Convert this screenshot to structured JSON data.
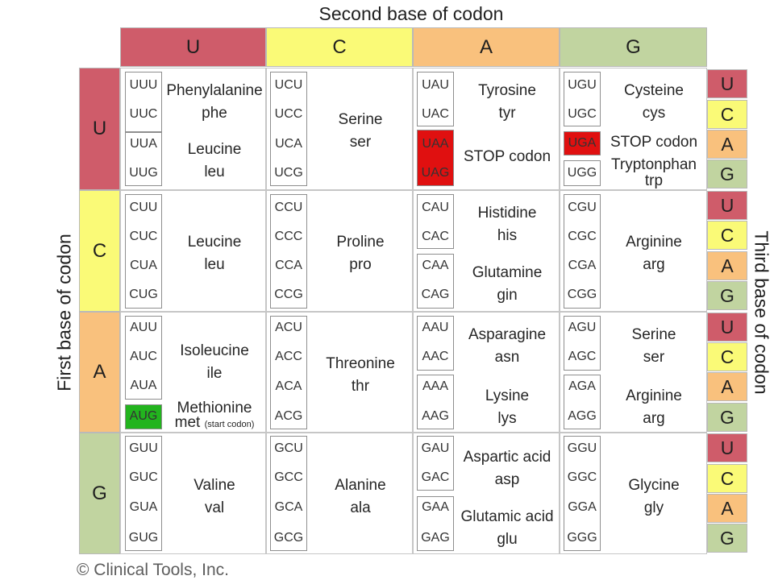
{
  "title_top": "Second base of codon",
  "title_left": "First base of codon",
  "title_right": "Third base of codon",
  "copyright": "© Clinical Tools, Inc.",
  "colors": {
    "U": "#cf5c6a",
    "C": "#fafa77",
    "A": "#f9c17d",
    "G": "#c1d4a0",
    "stop": "#e01010",
    "start": "#22b41e"
  },
  "second": [
    "U",
    "C",
    "A",
    "G"
  ],
  "first": [
    "U",
    "C",
    "A",
    "G"
  ],
  "third": [
    "U",
    "C",
    "A",
    "G"
  ],
  "codons": {
    "r0c0": [
      "UUU",
      "UUC",
      "UUA",
      "UUG"
    ],
    "r0c1": [
      "UCU",
      "UCC",
      "UCA",
      "UCG"
    ],
    "r0c2": [
      "UAU",
      "UAC",
      "UAA",
      "UAG"
    ],
    "r0c3": [
      "UGU",
      "UGC",
      "UGA",
      "UGG"
    ],
    "r1c0": [
      "CUU",
      "CUC",
      "CUA",
      "CUG"
    ],
    "r1c1": [
      "CCU",
      "CCC",
      "CCA",
      "CCG"
    ],
    "r1c2": [
      "CAU",
      "CAC",
      "CAA",
      "CAG"
    ],
    "r1c3": [
      "CGU",
      "CGC",
      "CGA",
      "CGG"
    ],
    "r2c0": [
      "AUU",
      "AUC",
      "AUA",
      "AUG"
    ],
    "r2c1": [
      "ACU",
      "ACC",
      "ACA",
      "ACG"
    ],
    "r2c2": [
      "AAU",
      "AAC",
      "AAA",
      "AAG"
    ],
    "r2c3": [
      "AGU",
      "AGC",
      "AGA",
      "AGG"
    ],
    "r3c0": [
      "GUU",
      "GUC",
      "GUA",
      "GUG"
    ],
    "r3c1": [
      "GCU",
      "GCC",
      "GCA",
      "GCG"
    ],
    "r3c2": [
      "GAU",
      "GAC",
      "GAA",
      "GAG"
    ],
    "r3c3": [
      "GGU",
      "GGC",
      "GGA",
      "GGG"
    ]
  },
  "aa": {
    "phe": [
      "Phenylalanine",
      "phe"
    ],
    "leu1": [
      "Leucine",
      "leu"
    ],
    "ser1": [
      "Serine",
      "ser"
    ],
    "tyr": [
      "Tyrosine",
      "tyr"
    ],
    "stop1": "STOP codon",
    "cys": [
      "Cysteine",
      "cys"
    ],
    "stop2": "STOP codon",
    "trp": [
      "Tryptonphan",
      "trp"
    ],
    "leu2": [
      "Leucine",
      "leu"
    ],
    "pro": [
      "Proline",
      "pro"
    ],
    "his": [
      "Histidine",
      "his"
    ],
    "gln": [
      "Glutamine",
      "gin"
    ],
    "arg1": [
      "Arginine",
      "arg"
    ],
    "ile": [
      "Isoleucine",
      "ile"
    ],
    "met": [
      "Methionine",
      "met",
      "(start codon)"
    ],
    "thr": [
      "Threonine",
      "thr"
    ],
    "asn": [
      "Asparagine",
      "asn"
    ],
    "lys": [
      "Lysine",
      "lys"
    ],
    "ser2": [
      "Serine",
      "ser"
    ],
    "arg2": [
      "Arginine",
      "arg"
    ],
    "val": [
      "Valine",
      "val"
    ],
    "ala": [
      "Alanine",
      "ala"
    ],
    "asp": [
      "Aspartic acid",
      "asp"
    ],
    "glu": [
      "Glutamic acid",
      "glu"
    ],
    "gly": [
      "Glycine",
      "gly"
    ]
  }
}
